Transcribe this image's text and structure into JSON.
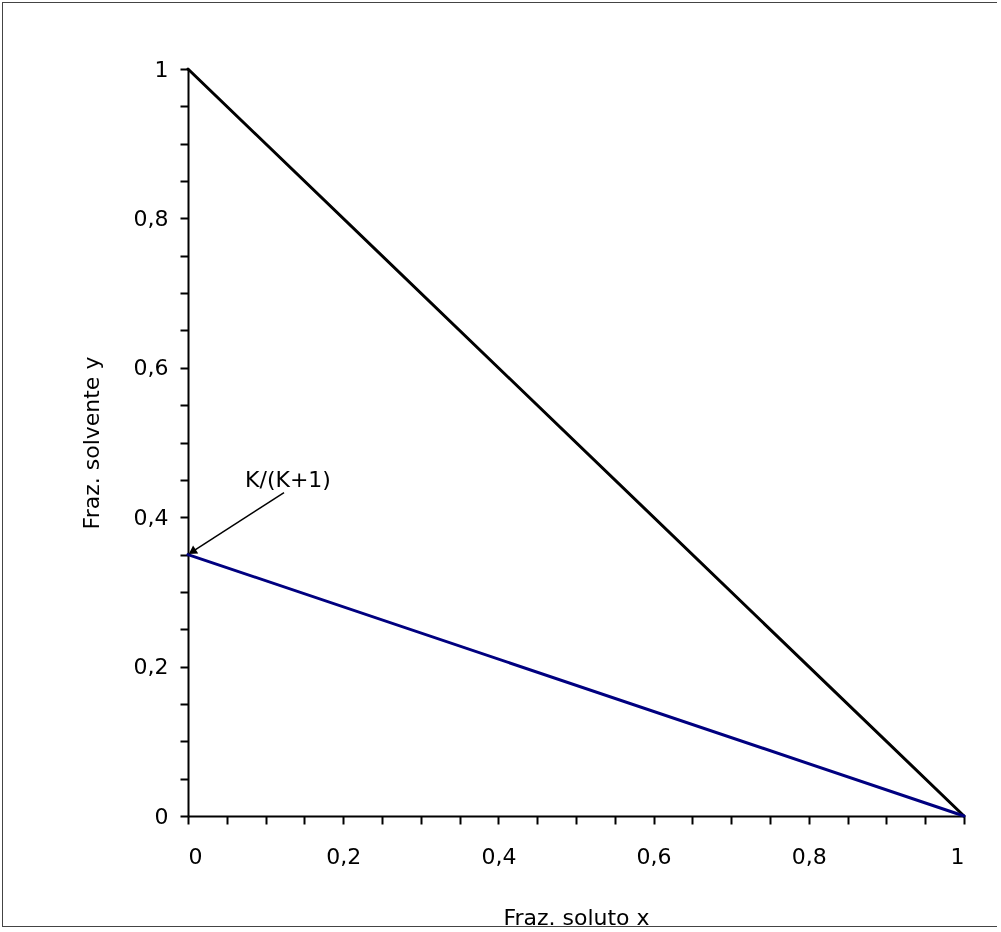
{
  "chart_data": {
    "type": "line",
    "xlabel": "Fraz. soluto x",
    "ylabel": "Fraz. solvente y",
    "series": [
      {
        "color": "#000000",
        "values": [
          1,
          0
        ]
      },
      {
        "color": "#000080",
        "values": [
          0.35,
          0
        ]
      }
    ],
    "x": [
      0,
      1
    ],
    "xlim": [
      0,
      1
    ],
    "ylim": [
      0,
      1
    ],
    "xticks": [
      0,
      {
        "value": 0.05,
        "label": null
      },
      {
        "value": 0.1,
        "label": null
      },
      {
        "value": 0.15,
        "label": null
      },
      {
        "value": 0.2,
        "label": "0,2"
      },
      {
        "value": 0.25,
        "label": null
      },
      {
        "value": 0.3,
        "label": null
      },
      {
        "value": 0.35,
        "label": null
      },
      {
        "value": 0.4,
        "label": "0,4"
      },
      {
        "value": 0.45,
        "label": null
      },
      {
        "value": 0.5,
        "label": null
      },
      {
        "value": 0.55,
        "label": null
      },
      {
        "value": 0.6,
        "label": "0,6"
      },
      {
        "value": 0.65,
        "label": null
      },
      {
        "value": 0.7,
        "label": null
      },
      {
        "value": 0.75,
        "label": null
      },
      {
        "value": 0.8,
        "label": "0,8"
      },
      {
        "value": 0.85,
        "label": null
      },
      {
        "value": 0.9,
        "label": null
      },
      {
        "value": 0.95,
        "label": null
      },
      1
    ],
    "yticks": [
      0,
      {
        "value": 0.05,
        "label": null
      },
      {
        "value": 0.1,
        "label": null
      },
      {
        "value": 0.15,
        "label": null
      },
      {
        "value": 0.2,
        "label": "0,2"
      },
      {
        "value": 0.25,
        "label": null
      },
      {
        "value": 0.3,
        "label": null
      },
      {
        "value": 0.35,
        "label": null
      },
      {
        "value": 0.4,
        "label": "0,4"
      },
      {
        "value": 0.45,
        "label": null
      },
      {
        "value": 0.5,
        "label": null
      },
      {
        "value": 0.55,
        "label": null
      },
      {
        "value": 0.6,
        "label": "0,6"
      },
      {
        "value": 0.65,
        "label": null
      },
      {
        "value": 0.7,
        "label": null
      },
      {
        "value": 0.75,
        "label": null
      },
      {
        "value": 0.8,
        "label": "0,8"
      },
      {
        "value": 0.85,
        "label": null
      },
      {
        "value": 0.9,
        "label": null
      },
      {
        "value": 0.95,
        "label": null
      },
      1
    ],
    "grid": false,
    "marker": "none",
    "line_style": "solid",
    "annotations": [
      {
        "text": "K/(K+1)",
        "x": 0,
        "y": 0.35
      }
    ]
  }
}
